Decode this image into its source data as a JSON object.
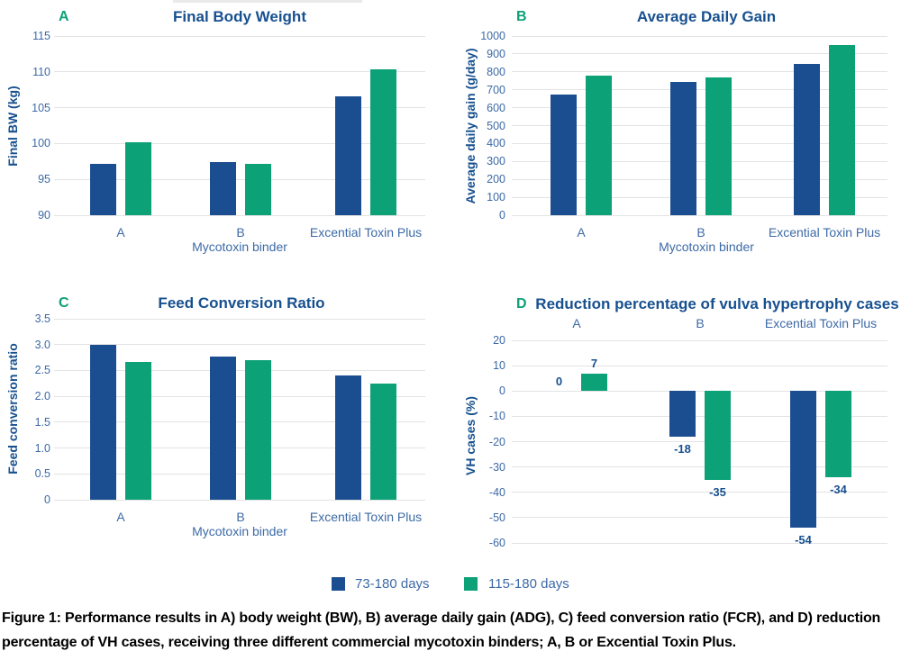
{
  "figure": {
    "caption": "Figure 1: Performance results in A) body weight (BW), B) average daily gain (ADG), C) feed conversion ratio (FCR), and D) reduction percentage of VH cases, receiving three different commercial mycotoxin binders; A, B or Excential Toxin Plus."
  },
  "legend": {
    "position": "bottom-center",
    "items": [
      {
        "label": "73-180 days",
        "color": "#1b4e90"
      },
      {
        "label": "115-180 days",
        "color": "#0ca177"
      }
    ]
  },
  "colors": {
    "series_blue": "#1b4e90",
    "series_green": "#0ca177",
    "title_blue": "#17508f",
    "label_blue": "#3d6aa6",
    "grid_gray": "#e3e3e3",
    "caption_black": "#000000"
  },
  "chart_data": [
    {
      "type": "bar",
      "panel_letter": "A",
      "title": "Final Body Weight",
      "categories": [
        "A",
        "B",
        "Excential Toxin Plus"
      ],
      "xlabel": "Mycotoxin binder",
      "ylabel": "Final BW (kg)",
      "ylim": [
        90,
        115
      ],
      "yticks": [
        "90",
        "95",
        "100",
        "105",
        "110",
        "115"
      ],
      "baseline": 90,
      "grid": true,
      "show_value_labels": false,
      "categories_position": "bottom",
      "series": [
        {
          "name": "73-180 days",
          "values": [
            97.2,
            97.4,
            106.6
          ]
        },
        {
          "name": "115-180 days",
          "values": [
            100.2,
            97.2,
            110.4
          ]
        }
      ]
    },
    {
      "type": "bar",
      "panel_letter": "B",
      "title": "Average Daily Gain",
      "categories": [
        "A",
        "B",
        "Excential Toxin Plus"
      ],
      "xlabel": "Mycotoxin binder",
      "ylabel": "Average daily gain (g/day)",
      "ylim": [
        0,
        1000
      ],
      "yticks": [
        "0",
        "100",
        "200",
        "300",
        "400",
        "500",
        "600",
        "700",
        "800",
        "900",
        "1000"
      ],
      "baseline": 0,
      "grid": true,
      "show_value_labels": false,
      "categories_position": "bottom",
      "series": [
        {
          "name": "73-180 days",
          "values": [
            675,
            745,
            845
          ]
        },
        {
          "name": "115-180 days",
          "values": [
            780,
            770,
            950
          ]
        }
      ]
    },
    {
      "type": "bar",
      "panel_letter": "C",
      "title": "Feed Conversion Ratio",
      "categories": [
        "A",
        "B",
        "Excential Toxin Plus"
      ],
      "xlabel": "Mycotoxin binder",
      "ylabel": "Feed conversion ratio",
      "ylim": [
        0,
        3.5
      ],
      "yticks": [
        "0",
        "0.5",
        "1.0",
        "1.5",
        "2.0",
        "2.5",
        "3.0",
        "3.5"
      ],
      "baseline": 0,
      "grid": true,
      "show_value_labels": false,
      "categories_position": "bottom",
      "series": [
        {
          "name": "73-180 days",
          "values": [
            2.99,
            2.77,
            2.41
          ]
        },
        {
          "name": "115-180 days",
          "values": [
            2.66,
            2.7,
            2.24
          ]
        }
      ]
    },
    {
      "type": "bar",
      "panel_letter": "D",
      "title": "Reduction percentage of vulva hypertrophy cases",
      "categories": [
        "A",
        "B",
        "Excential Toxin Plus"
      ],
      "xlabel": "",
      "ylabel": "VH cases (%)",
      "ylim": [
        -60,
        20
      ],
      "yticks": [
        "20",
        "10",
        "0",
        "-10",
        "-20",
        "-30",
        "-40",
        "-50",
        "-60"
      ],
      "baseline": 0,
      "grid": true,
      "show_value_labels": true,
      "categories_position": "top",
      "series": [
        {
          "name": "73-180 days",
          "values": [
            0,
            -18,
            -54
          ]
        },
        {
          "name": "115-180 days",
          "values": [
            7,
            -35,
            -34
          ]
        }
      ]
    }
  ]
}
